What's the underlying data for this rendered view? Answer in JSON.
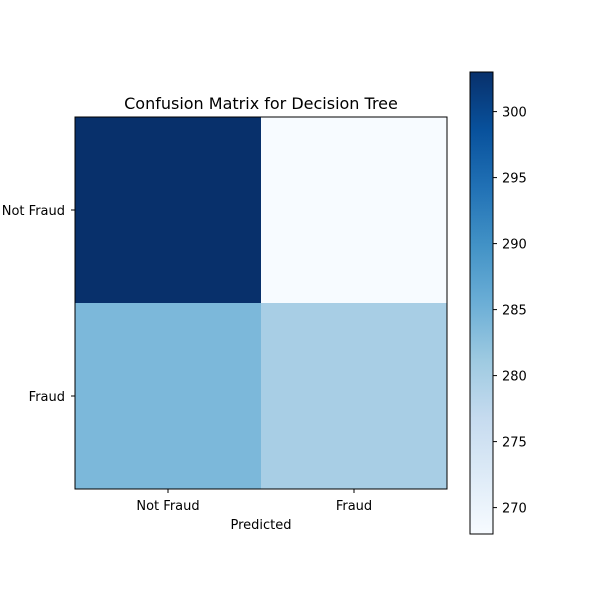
{
  "chart_data": {
    "type": "heatmap",
    "title": "Confusion Matrix for Decision Tree",
    "xlabel": "Predicted",
    "ylabel": "",
    "x_categories": [
      "Not Fraud",
      "Fraud"
    ],
    "y_categories": [
      "Not Fraud",
      "Fraud"
    ],
    "values": [
      [
        303,
        268
      ],
      [
        284,
        280
      ]
    ],
    "colormap": "Blues",
    "colorbar": {
      "range": [
        268,
        303
      ],
      "ticks": [
        270,
        275,
        280,
        285,
        290,
        295,
        300
      ]
    },
    "grid": false
  }
}
